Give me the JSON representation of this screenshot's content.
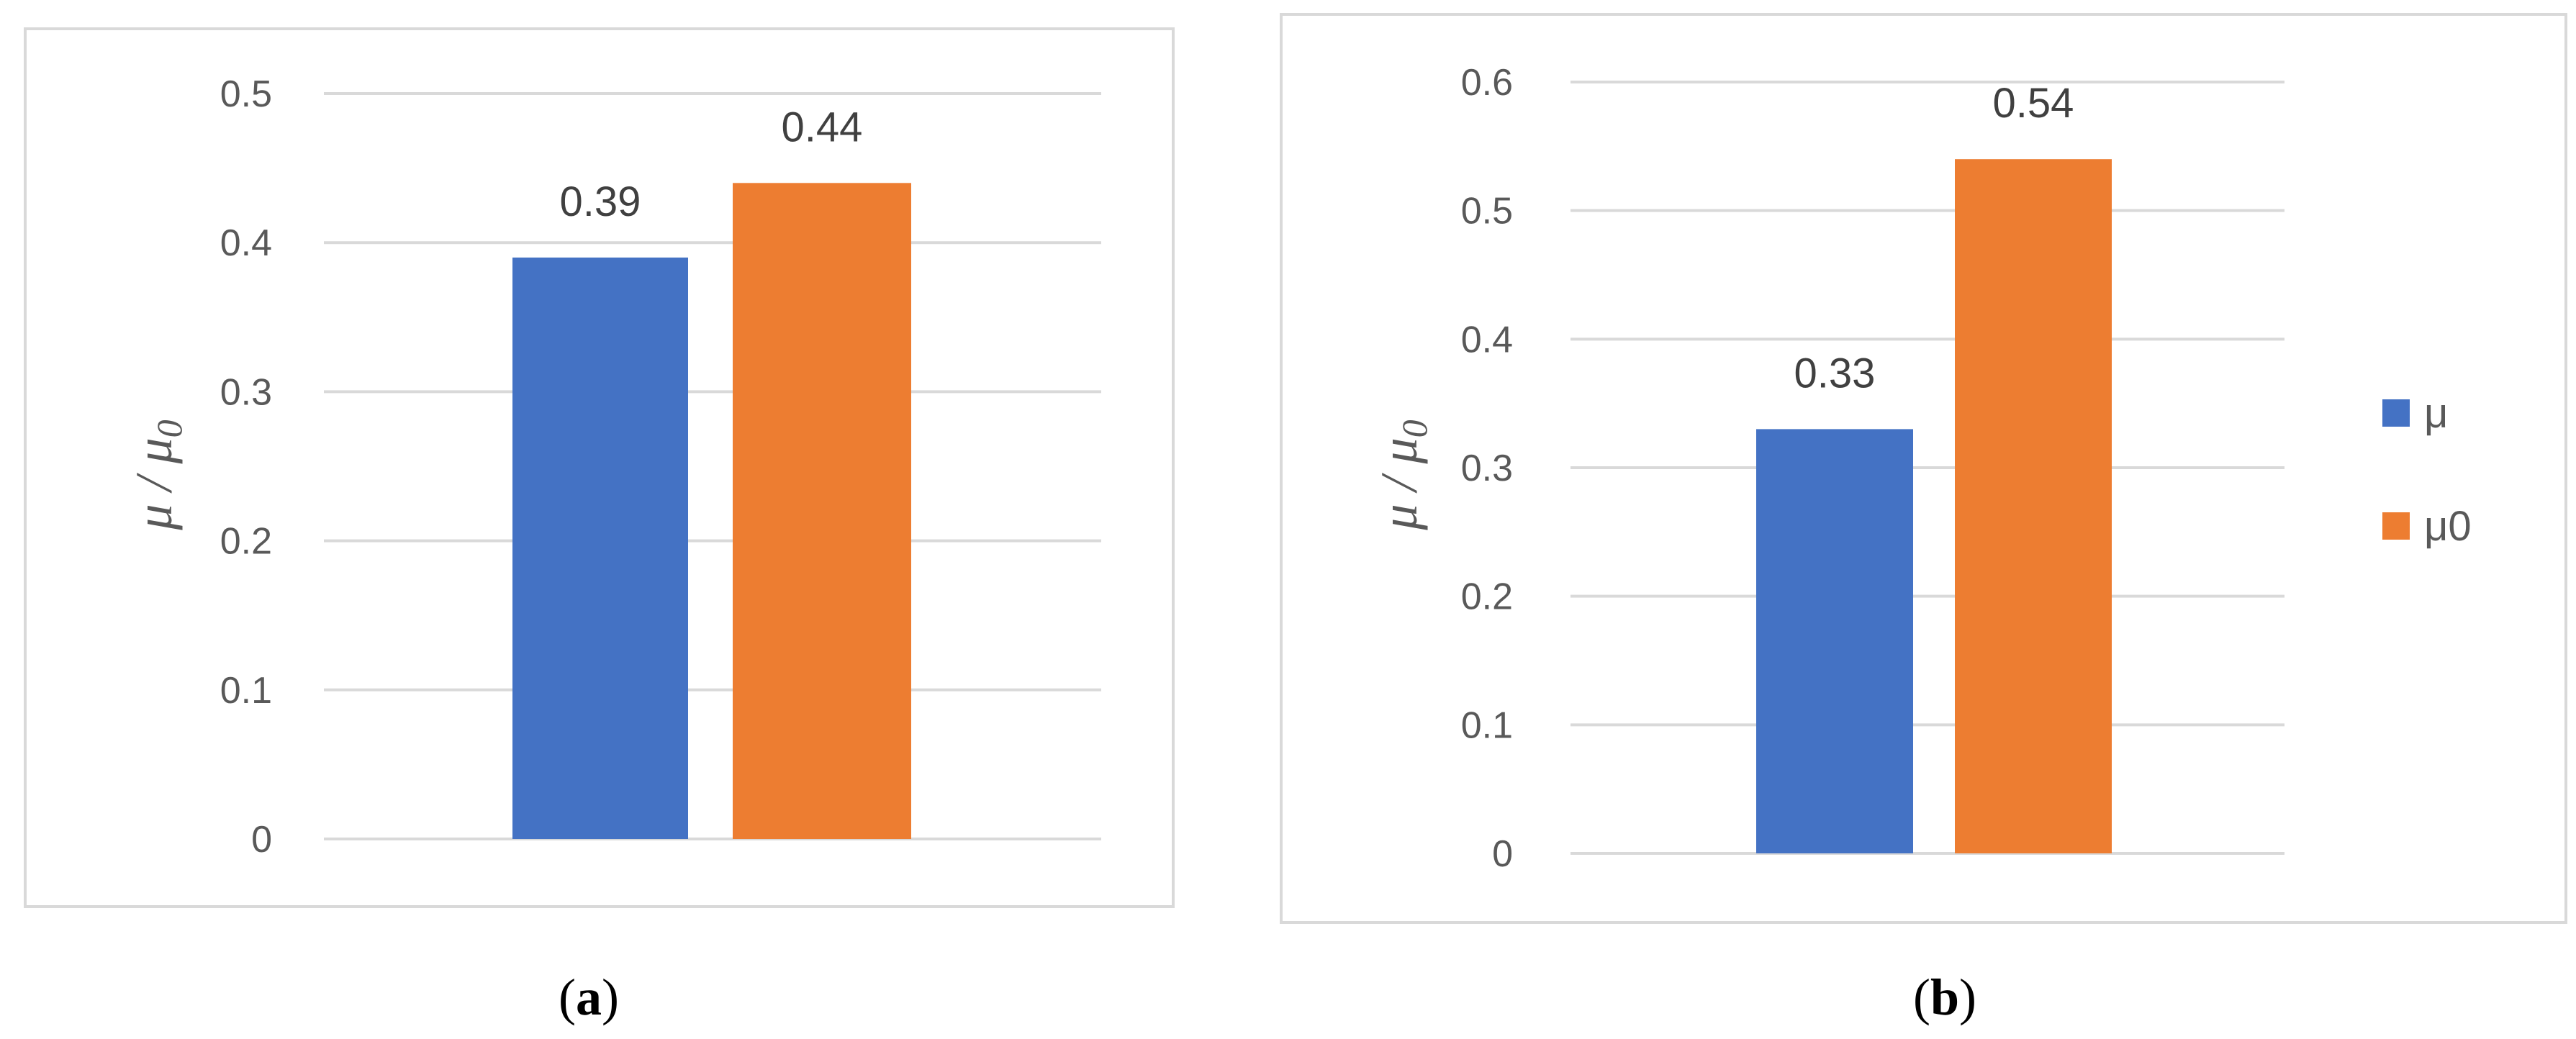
{
  "chart_data": [
    {
      "type": "bar",
      "panel_label": "a",
      "ylabel": "μ / μ",
      "ylabel_subscript": "0",
      "ylim": [
        0,
        0.5
      ],
      "y_ticks": [
        "0",
        "0.1",
        "0.2",
        "0.3",
        "0.4",
        "0.5"
      ],
      "grid": true,
      "series": [
        {
          "name": "μ",
          "values": [
            0.39
          ],
          "color": "#4472C4"
        },
        {
          "name": "μ0",
          "values": [
            0.44
          ],
          "color": "#ED7D31"
        }
      ],
      "data_labels": [
        "0.39",
        "0.44"
      ]
    },
    {
      "type": "bar",
      "panel_label": "b",
      "ylabel": "μ / μ",
      "ylabel_subscript": "0",
      "ylim": [
        0,
        0.6
      ],
      "y_ticks": [
        "0",
        "0.1",
        "0.2",
        "0.3",
        "0.4",
        "0.5",
        "0.6"
      ],
      "grid": true,
      "legend_position": "right",
      "series": [
        {
          "name": "μ",
          "values": [
            0.33
          ],
          "color": "#4472C4"
        },
        {
          "name": "μ0",
          "values": [
            0.54
          ],
          "color": "#ED7D31"
        }
      ],
      "data_labels": [
        "0.33",
        "0.54"
      ]
    }
  ],
  "captions": [
    {
      "open": "(",
      "letter": "a",
      "close": ")"
    },
    {
      "open": "(",
      "letter": "b",
      "close": ")"
    }
  ]
}
